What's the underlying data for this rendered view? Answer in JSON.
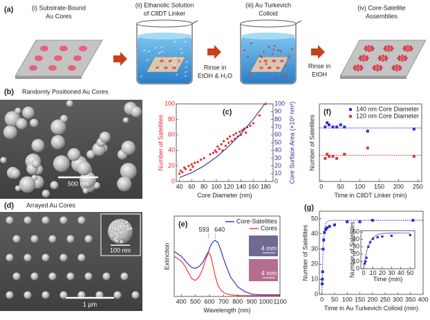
{
  "schematic": {
    "label": "(a)",
    "steps": [
      [
        "(i) Substrate-Bound",
        "Au Cores"
      ],
      [
        "(ii) Ethanolic Solution",
        "of C8DT Linker"
      ],
      [
        "(iii) Au Turkevich",
        "Colloid"
      ],
      [
        "(iv) Core-Satellite",
        "Assemblies"
      ]
    ],
    "rinses": [
      [
        "Rinse in",
        "EtOH & H₂O"
      ],
      [
        "Rinse in",
        "EtOH"
      ]
    ]
  },
  "micrographs": [
    {
      "label": "(b)",
      "title": "Randomly Positioned Au Cores",
      "scale_bar": "500 nm"
    },
    {
      "label": "(d)",
      "title": "Arrayed Au Cores",
      "scale_bar": "1 μm",
      "inset_scale_bar": "100 nm"
    }
  ],
  "chart_data": [
    {
      "type": "scatter",
      "label": "(c)",
      "xlabel": "Core Diameter (nm)",
      "ylabel": "Number of Satellites",
      "y2label": "Core Surface Area (×10³ nm²)",
      "xlim": [
        35,
        192
      ],
      "xticks": [
        40,
        60,
        80,
        100,
        120,
        140,
        160,
        180
      ],
      "ylim": [
        0,
        100
      ],
      "yticks": [
        0,
        20,
        40,
        60,
        80,
        100
      ],
      "y2lim": [
        0,
        100
      ],
      "y2ticks": [
        0,
        10,
        20,
        30,
        40,
        50,
        60,
        70,
        80,
        90,
        100
      ],
      "color_axes": true,
      "series": [
        {
          "color": "#e8262a",
          "mode": "markers",
          "marker": "circle",
          "x": [
            40,
            42,
            45,
            48,
            50,
            55,
            58,
            60,
            62,
            65,
            70,
            75,
            80,
            90,
            95,
            98,
            100,
            102,
            105,
            108,
            110,
            112,
            115,
            118,
            120,
            122,
            125,
            128,
            130,
            132,
            135,
            138,
            140,
            142,
            145,
            148,
            150,
            155,
            160,
            170,
            180
          ],
          "values": [
            10,
            14,
            12,
            18,
            16,
            20,
            15,
            22,
            19,
            24,
            25,
            28,
            30,
            35,
            37,
            40,
            38,
            45,
            42,
            48,
            40,
            52,
            46,
            55,
            50,
            58,
            52,
            60,
            55,
            62,
            58,
            64,
            60,
            66,
            68,
            63,
            70,
            72,
            75,
            85,
            100
          ]
        },
        {
          "color": "#2a2a9a",
          "mode": "line",
          "axis": "y2",
          "x": [
            40,
            60,
            80,
            100,
            120,
            140,
            160,
            178
          ],
          "values": [
            5.0,
            11.3,
            20.1,
            31.4,
            45.2,
            61.6,
            80.4,
            99.5
          ]
        }
      ]
    },
    {
      "type": "scatter",
      "label": "(f)",
      "xlabel": "Time in C8DT Linker (min)",
      "ylabel": "Number of Satellites",
      "xlim": [
        -5,
        260
      ],
      "xticks": [
        0,
        50,
        100,
        150,
        200,
        250
      ],
      "ylim": [
        35,
        72
      ],
      "legend": "upper right",
      "series": [
        {
          "name": "140 nm Core Diameter",
          "color": "#2b2bd0",
          "mode": "markers",
          "marker": "square",
          "x": [
            10,
            15,
            20,
            30,
            40,
            50,
            60,
            120,
            240
          ],
          "values": [
            61,
            63,
            62,
            61,
            61,
            62,
            61,
            59,
            60
          ]
        },
        {
          "name": "120 nm Core Diameter",
          "color": "#e83030",
          "mode": "markers",
          "marker": "square",
          "x": [
            10,
            15,
            20,
            30,
            40,
            60,
            120,
            240
          ],
          "values": [
            46,
            48,
            47,
            47,
            46,
            48,
            51,
            47
          ]
        },
        {
          "color": "#2b2bd0",
          "mode": "line",
          "dash": true,
          "x": [
            -5,
            260
          ],
          "values": [
            60.5,
            60.5
          ]
        },
        {
          "color": "#e83030",
          "mode": "line",
          "dash": true,
          "x": [
            -5,
            260
          ],
          "values": [
            47.5,
            47.5
          ]
        }
      ]
    },
    {
      "type": "line",
      "label": "(e)",
      "xlabel": "Wavelength (nm)",
      "ylabel": "Extinction",
      "xlim": [
        350,
        1100
      ],
      "xticks": [
        400,
        500,
        600,
        700,
        800,
        900,
        1000,
        1100
      ],
      "ylim": [
        0,
        1
      ],
      "legend": "upper right",
      "peak_labels": [
        593,
        640
      ],
      "photo_labels": [
        "4 mm",
        "4 mm"
      ],
      "series": [
        {
          "name": "Core-Satellites",
          "color": "#1d1dc8",
          "mode": "line",
          "x": [
            350,
            375,
            400,
            425,
            450,
            475,
            500,
            525,
            550,
            575,
            593,
            610,
            625,
            640,
            660,
            680,
            700,
            725,
            750,
            800,
            850,
            900,
            950,
            1000,
            1100
          ],
          "values": [
            0.56,
            0.53,
            0.5,
            0.45,
            0.4,
            0.36,
            0.35,
            0.37,
            0.42,
            0.5,
            0.56,
            0.64,
            0.68,
            0.7,
            0.67,
            0.58,
            0.47,
            0.35,
            0.24,
            0.12,
            0.06,
            0.03,
            0.02,
            0.02,
            0.02
          ]
        },
        {
          "name": "Cores",
          "color": "#ff2020",
          "mode": "line",
          "x": [
            350,
            375,
            400,
            425,
            450,
            475,
            500,
            525,
            550,
            575,
            593,
            610,
            625,
            640,
            660,
            680,
            700,
            725,
            750,
            800,
            850,
            900,
            950,
            1000,
            1100
          ],
          "values": [
            0.5,
            0.47,
            0.44,
            0.38,
            0.3,
            0.22,
            0.2,
            0.24,
            0.33,
            0.47,
            0.55,
            0.5,
            0.38,
            0.26,
            0.14,
            0.08,
            0.05,
            0.03,
            0.02,
            0.01,
            0.01,
            0.01,
            0.01,
            0.01,
            0.01
          ]
        }
      ]
    },
    {
      "type": "scatter",
      "label": "(g)",
      "xlabel": "Time in Au Turkevich Colloid (min)",
      "ylabel": "Number of Satellites",
      "xlim": [
        -10,
        400
      ],
      "xticks": [
        0,
        50,
        100,
        150,
        200,
        250,
        300,
        350,
        400
      ],
      "ylim": [
        0,
        55
      ],
      "yticks": [
        0,
        10,
        20,
        30,
        40,
        50
      ],
      "series": [
        {
          "color": "#2b2bd0",
          "mode": "markers",
          "marker": "square",
          "x": [
            1,
            2,
            3,
            5,
            7,
            10,
            15,
            20,
            30,
            50,
            100,
            150,
            200,
            360
          ],
          "values": [
            7,
            10,
            15,
            30,
            36,
            41,
            43,
            44,
            45,
            46,
            48,
            48,
            49,
            49
          ]
        },
        {
          "color": "#2b2bd0",
          "mode": "line",
          "dash": true,
          "x": [
            0,
            2,
            4,
            6,
            8,
            10,
            15,
            20,
            30,
            50,
            100,
            200,
            300,
            400
          ],
          "values": [
            0,
            16.2,
            27,
            34.2,
            39,
            42.4,
            46.6,
            48.1,
            48.9,
            49,
            49,
            49,
            49,
            49
          ]
        }
      ]
    },
    {
      "type": "scatter",
      "xlabel": "Time (min)",
      "ylabel": "Number of Satellites",
      "xlim": [
        -3,
        55
      ],
      "xticks": [
        0,
        10,
        20,
        30,
        40,
        50
      ],
      "ylim": [
        0,
        52
      ],
      "yticks": [
        0,
        10,
        20,
        30,
        40,
        50
      ],
      "series": [
        {
          "color": "#2b2bd0",
          "mode": "markers",
          "marker": "square",
          "x": [
            1,
            2,
            3,
            5,
            7,
            10,
            15,
            20,
            30,
            50
          ],
          "values": [
            7,
            10,
            15,
            30,
            36,
            41,
            43,
            44,
            45,
            46
          ]
        },
        {
          "color": "#2b2bd0",
          "mode": "line",
          "x": [
            0,
            2,
            4,
            6,
            8,
            10,
            15,
            20,
            30,
            50
          ],
          "values": [
            0,
            16.2,
            27,
            34.2,
            39,
            42.4,
            46.6,
            48.1,
            48.9,
            49
          ]
        }
      ]
    }
  ]
}
